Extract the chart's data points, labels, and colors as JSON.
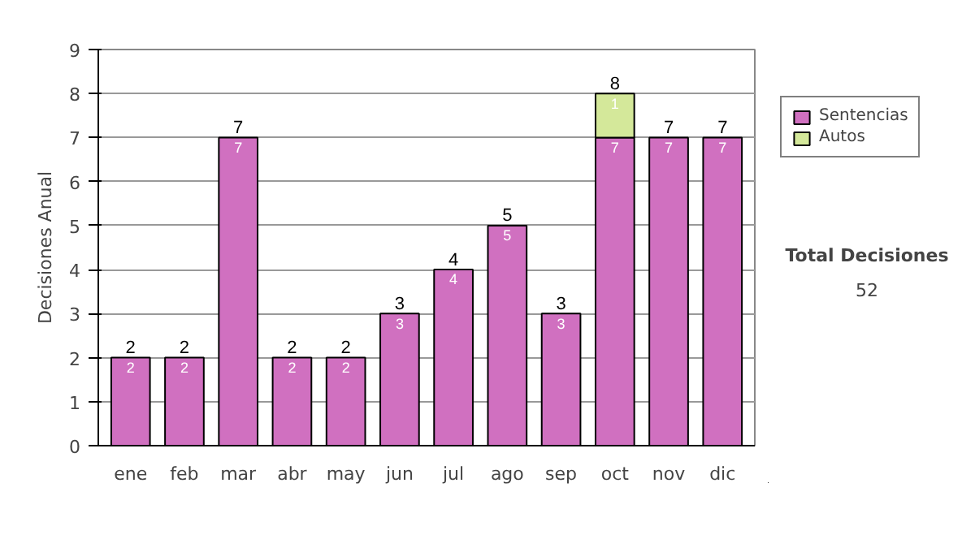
{
  "chart_data": {
    "type": "bar",
    "stacked": true,
    "categories": [
      "ene",
      "feb",
      "mar",
      "abr",
      "may",
      "jun",
      "jul",
      "ago",
      "sep",
      "oct",
      "nov",
      "dic"
    ],
    "series": [
      {
        "name": "Sentencias",
        "color": "#d070c0",
        "values": [
          2,
          2,
          7,
          2,
          2,
          3,
          4,
          5,
          3,
          7,
          7,
          7
        ]
      },
      {
        "name": "Autos",
        "color": "#d4e89a",
        "values": [
          null,
          null,
          null,
          null,
          null,
          null,
          null,
          null,
          null,
          1,
          null,
          null
        ]
      }
    ],
    "ylabel": "Decisiones Anual",
    "ylim": [
      0,
      9
    ],
    "yticks": [
      0,
      1,
      2,
      3,
      4,
      5,
      6,
      7,
      8,
      9
    ],
    "grid": "y",
    "legend": "right",
    "data_labels": true,
    "totals": [
      "2",
      "2",
      "7",
      "2",
      "2",
      "3",
      "4",
      "5",
      "3",
      "8",
      "7",
      "7"
    ],
    "annotations": [
      "Total Decisiones",
      "52"
    ]
  }
}
